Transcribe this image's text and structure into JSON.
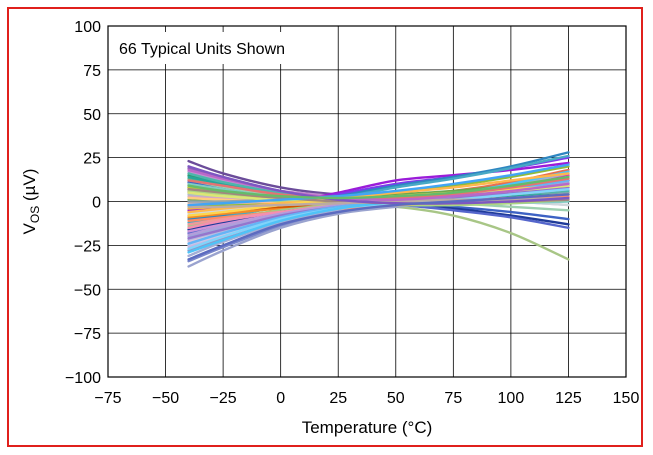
{
  "chart_data": {
    "type": "line",
    "title": "",
    "annotation": "66 Typical Units Shown",
    "xlabel": "Temperature (°C)",
    "ylabel_main": "V",
    "ylabel_sub": "OS",
    "ylabel_unit": " (µV)",
    "xlim": [
      -75,
      150
    ],
    "ylim": [
      -100,
      100
    ],
    "xticks": [
      -75,
      -50,
      -25,
      0,
      25,
      50,
      75,
      100,
      125,
      150
    ],
    "yticks": [
      -100,
      -75,
      -50,
      -25,
      0,
      25,
      50,
      75,
      100
    ],
    "xtick_labels": [
      "−75",
      "−50",
      "−25",
      "0",
      "25",
      "50",
      "75",
      "100",
      "125",
      "150"
    ],
    "ytick_labels": [
      "−100",
      "−75",
      "−50",
      "−25",
      "0",
      "25",
      "50",
      "75",
      "100"
    ],
    "grid": true,
    "border_color": "#e0201c",
    "x": [
      -40,
      -25,
      0,
      25,
      50,
      75,
      100,
      125
    ],
    "series": [
      {
        "color": "#6b4c9a",
        "values": [
          23,
          16,
          8,
          4,
          3,
          5,
          8,
          12
        ]
      },
      {
        "color": "#8c63b5",
        "values": [
          19,
          13,
          6,
          3,
          2,
          5,
          9,
          14
        ]
      },
      {
        "color": "#c48fd0",
        "values": [
          17,
          12,
          6,
          3,
          1,
          2,
          4,
          8
        ]
      },
      {
        "color": "#2e9c6b",
        "values": [
          15,
          10,
          4,
          1,
          0,
          2,
          5,
          9
        ]
      },
      {
        "color": "#5ab08a",
        "values": [
          13,
          9,
          4,
          1,
          1,
          3,
          6,
          10
        ]
      },
      {
        "color": "#9dd0b0",
        "values": [
          12,
          8,
          3,
          1,
          0,
          -1,
          -3,
          -5
        ]
      },
      {
        "color": "#3d62c4",
        "values": [
          11,
          7,
          2,
          0,
          -1,
          -3,
          -6,
          -10
        ]
      },
      {
        "color": "#7f95d8",
        "values": [
          10,
          6,
          1,
          0,
          1,
          3,
          5,
          6
        ]
      },
      {
        "color": "#f4a261",
        "values": [
          9,
          6,
          2,
          1,
          2,
          4,
          7,
          11
        ]
      },
      {
        "color": "#e76f51",
        "values": [
          8,
          5,
          2,
          2,
          3,
          6,
          11,
          18
        ]
      },
      {
        "color": "#d7263d",
        "values": [
          7,
          4,
          1,
          0,
          1,
          3,
          7,
          12
        ]
      },
      {
        "color": "#e02fa7",
        "values": [
          6,
          3,
          0,
          -1,
          0,
          4,
          9,
          15
        ]
      },
      {
        "color": "#b5179e",
        "values": [
          5,
          2,
          -1,
          -1,
          0,
          2,
          5,
          9
        ]
      },
      {
        "color": "#9b1cd9",
        "values": [
          -5,
          -4,
          -1,
          5,
          12,
          15,
          18,
          22
        ]
      },
      {
        "color": "#7c3aed",
        "values": [
          -8,
          -6,
          -2,
          4,
          10,
          14,
          19,
          25
        ]
      },
      {
        "color": "#2e86c1",
        "values": [
          -10,
          -8,
          -3,
          3,
          9,
          14,
          20,
          28
        ]
      },
      {
        "color": "#48a9c5",
        "values": [
          -12,
          -9,
          -3,
          2,
          8,
          13,
          19,
          26
        ]
      },
      {
        "color": "#f28c28",
        "values": [
          -9,
          -7,
          -4,
          -3,
          -1,
          2,
          6,
          10
        ]
      },
      {
        "color": "#d35400",
        "values": [
          -6,
          -5,
          -3,
          -2,
          -1,
          1,
          3,
          5
        ]
      },
      {
        "color": "#e9b44c",
        "values": [
          -4,
          -3,
          -2,
          -1,
          0,
          2,
          4,
          7
        ]
      },
      {
        "color": "#c9a227",
        "values": [
          -2,
          -2,
          -1,
          0,
          1,
          3,
          6,
          9
        ]
      },
      {
        "color": "#8fbc3a",
        "values": [
          -3,
          -2,
          0,
          2,
          5,
          9,
          14,
          20
        ]
      },
      {
        "color": "#6aa84f",
        "values": [
          1,
          1,
          2,
          3,
          4,
          6,
          9,
          12
        ]
      },
      {
        "color": "#a8c686",
        "values": [
          -14,
          -10,
          -5,
          -2,
          -3,
          -8,
          -18,
          -33
        ]
      },
      {
        "color": "#1f3b99",
        "values": [
          -16,
          -12,
          -6,
          -3,
          -2,
          -4,
          -8,
          -13
        ]
      },
      {
        "color": "#5566cc",
        "values": [
          -18,
          -14,
          -7,
          -3,
          -2,
          -5,
          -9,
          -15
        ]
      },
      {
        "color": "#9fa8da",
        "values": [
          -20,
          -15,
          -7,
          -2,
          0,
          2,
          6,
          11
        ]
      },
      {
        "color": "#b3b8e0",
        "values": [
          -22,
          -17,
          -9,
          -4,
          -1,
          1,
          3,
          6
        ]
      },
      {
        "color": "#c5cae9",
        "values": [
          -25,
          -19,
          -10,
          -4,
          -1,
          3,
          8,
          14
        ]
      },
      {
        "color": "#8e99c8",
        "values": [
          -28,
          -21,
          -11,
          -5,
          -2,
          2,
          6,
          10
        ]
      },
      {
        "color": "#a3aed6",
        "values": [
          -31,
          -23,
          -12,
          -5,
          -1,
          3,
          9,
          16
        ]
      },
      {
        "color": "#7986cb",
        "values": [
          -34,
          -26,
          -14,
          -6,
          -2,
          1,
          4,
          8
        ]
      },
      {
        "color": "#9aa3cf",
        "values": [
          -37,
          -28,
          -15,
          -7,
          -3,
          0,
          3,
          5
        ]
      },
      {
        "color": "#c8b6e2",
        "values": [
          -26,
          -20,
          -10,
          -3,
          0,
          1,
          0,
          -2
        ]
      },
      {
        "color": "#e0c3d9",
        "values": [
          -23,
          -18,
          -9,
          -3,
          0,
          2,
          2,
          1
        ]
      },
      {
        "color": "#d8a7c4",
        "values": [
          3,
          2,
          0,
          -1,
          -1,
          0,
          1,
          2
        ]
      },
      {
        "color": "#f7b7a3",
        "values": [
          -1,
          -1,
          0,
          1,
          2,
          3,
          4,
          6
        ]
      },
      {
        "color": "#ffcc80",
        "values": [
          2,
          1,
          0,
          0,
          1,
          2,
          3,
          4
        ]
      },
      {
        "color": "#b0bec5",
        "values": [
          4,
          3,
          1,
          0,
          0,
          1,
          2,
          3
        ]
      },
      {
        "color": "#cfd8dc",
        "values": [
          -7,
          -5,
          -2,
          0,
          1,
          1,
          0,
          -2
        ]
      },
      {
        "color": "#90a4ae",
        "values": [
          0,
          0,
          1,
          1,
          2,
          3,
          4,
          5
        ]
      },
      {
        "color": "#26a69a",
        "values": [
          14,
          10,
          4,
          1,
          0,
          1,
          3,
          4
        ]
      },
      {
        "color": "#4db6ac",
        "values": [
          16,
          11,
          5,
          2,
          1,
          2,
          4,
          6
        ]
      },
      {
        "color": "#80cbc4",
        "values": [
          10,
          7,
          2,
          -1,
          -2,
          -2,
          -1,
          0
        ]
      },
      {
        "color": "#c0ca33",
        "values": [
          8,
          5,
          1,
          -1,
          -1,
          0,
          2,
          4
        ]
      },
      {
        "color": "#aed581",
        "values": [
          6,
          4,
          0,
          -2,
          -2,
          -2,
          -1,
          1
        ]
      },
      {
        "color": "#ff8a65",
        "values": [
          -11,
          -9,
          -6,
          -4,
          -2,
          0,
          2,
          3
        ]
      },
      {
        "color": "#ef9a9a",
        "values": [
          -13,
          -10,
          -6,
          -3,
          -1,
          1,
          4,
          7
        ]
      },
      {
        "color": "#f48fb1",
        "values": [
          -15,
          -11,
          -6,
          -2,
          0,
          3,
          7,
          12
        ]
      },
      {
        "color": "#ce93d8",
        "values": [
          -17,
          -13,
          -7,
          -3,
          -1,
          0,
          2,
          4
        ]
      },
      {
        "color": "#b39ddb",
        "values": [
          -19,
          -14,
          -7,
          -2,
          1,
          4,
          8,
          13
        ]
      },
      {
        "color": "#9575cd",
        "values": [
          -21,
          -16,
          -8,
          -3,
          0,
          2,
          5,
          8
        ]
      },
      {
        "color": "#64b5f6",
        "values": [
          -24,
          -18,
          -9,
          -3,
          0,
          3,
          7,
          12
        ]
      },
      {
        "color": "#81d4fa",
        "values": [
          -27,
          -20,
          -10,
          -4,
          -1,
          1,
          4,
          7
        ]
      },
      {
        "color": "#4fc3f7",
        "values": [
          -29,
          -22,
          -11,
          -4,
          0,
          4,
          10,
          17
        ]
      },
      {
        "color": "#ffb74d",
        "values": [
          -6,
          -4,
          -1,
          2,
          5,
          8,
          12,
          16
        ]
      },
      {
        "color": "#ffd54f",
        "values": [
          -8,
          -6,
          -2,
          1,
          3,
          5,
          7,
          9
        ]
      },
      {
        "color": "#dce775",
        "values": [
          5,
          3,
          1,
          1,
          2,
          4,
          6,
          9
        ]
      },
      {
        "color": "#a1887f",
        "values": [
          7,
          5,
          2,
          0,
          -1,
          -1,
          0,
          1
        ]
      },
      {
        "color": "#bcaaa4",
        "values": [
          -3,
          -3,
          -2,
          -1,
          0,
          1,
          1,
          2
        ]
      },
      {
        "color": "#e57373",
        "values": [
          12,
          9,
          4,
          2,
          2,
          4,
          8,
          13
        ]
      },
      {
        "color": "#ba68c8",
        "values": [
          18,
          13,
          6,
          2,
          1,
          3,
          6,
          10
        ]
      },
      {
        "color": "#7e57c2",
        "values": [
          20,
          14,
          6,
          1,
          -1,
          -1,
          0,
          2
        ]
      },
      {
        "color": "#5c6bc0",
        "values": [
          -33,
          -25,
          -13,
          -6,
          -2,
          0,
          2,
          4
        ]
      },
      {
        "color": "#42a5f5",
        "values": [
          -2,
          -1,
          1,
          3,
          6,
          10,
          15,
          21
        ]
      },
      {
        "color": "#66bb6a",
        "values": [
          9,
          6,
          3,
          2,
          3,
          5,
          9,
          14
        ]
      }
    ]
  }
}
